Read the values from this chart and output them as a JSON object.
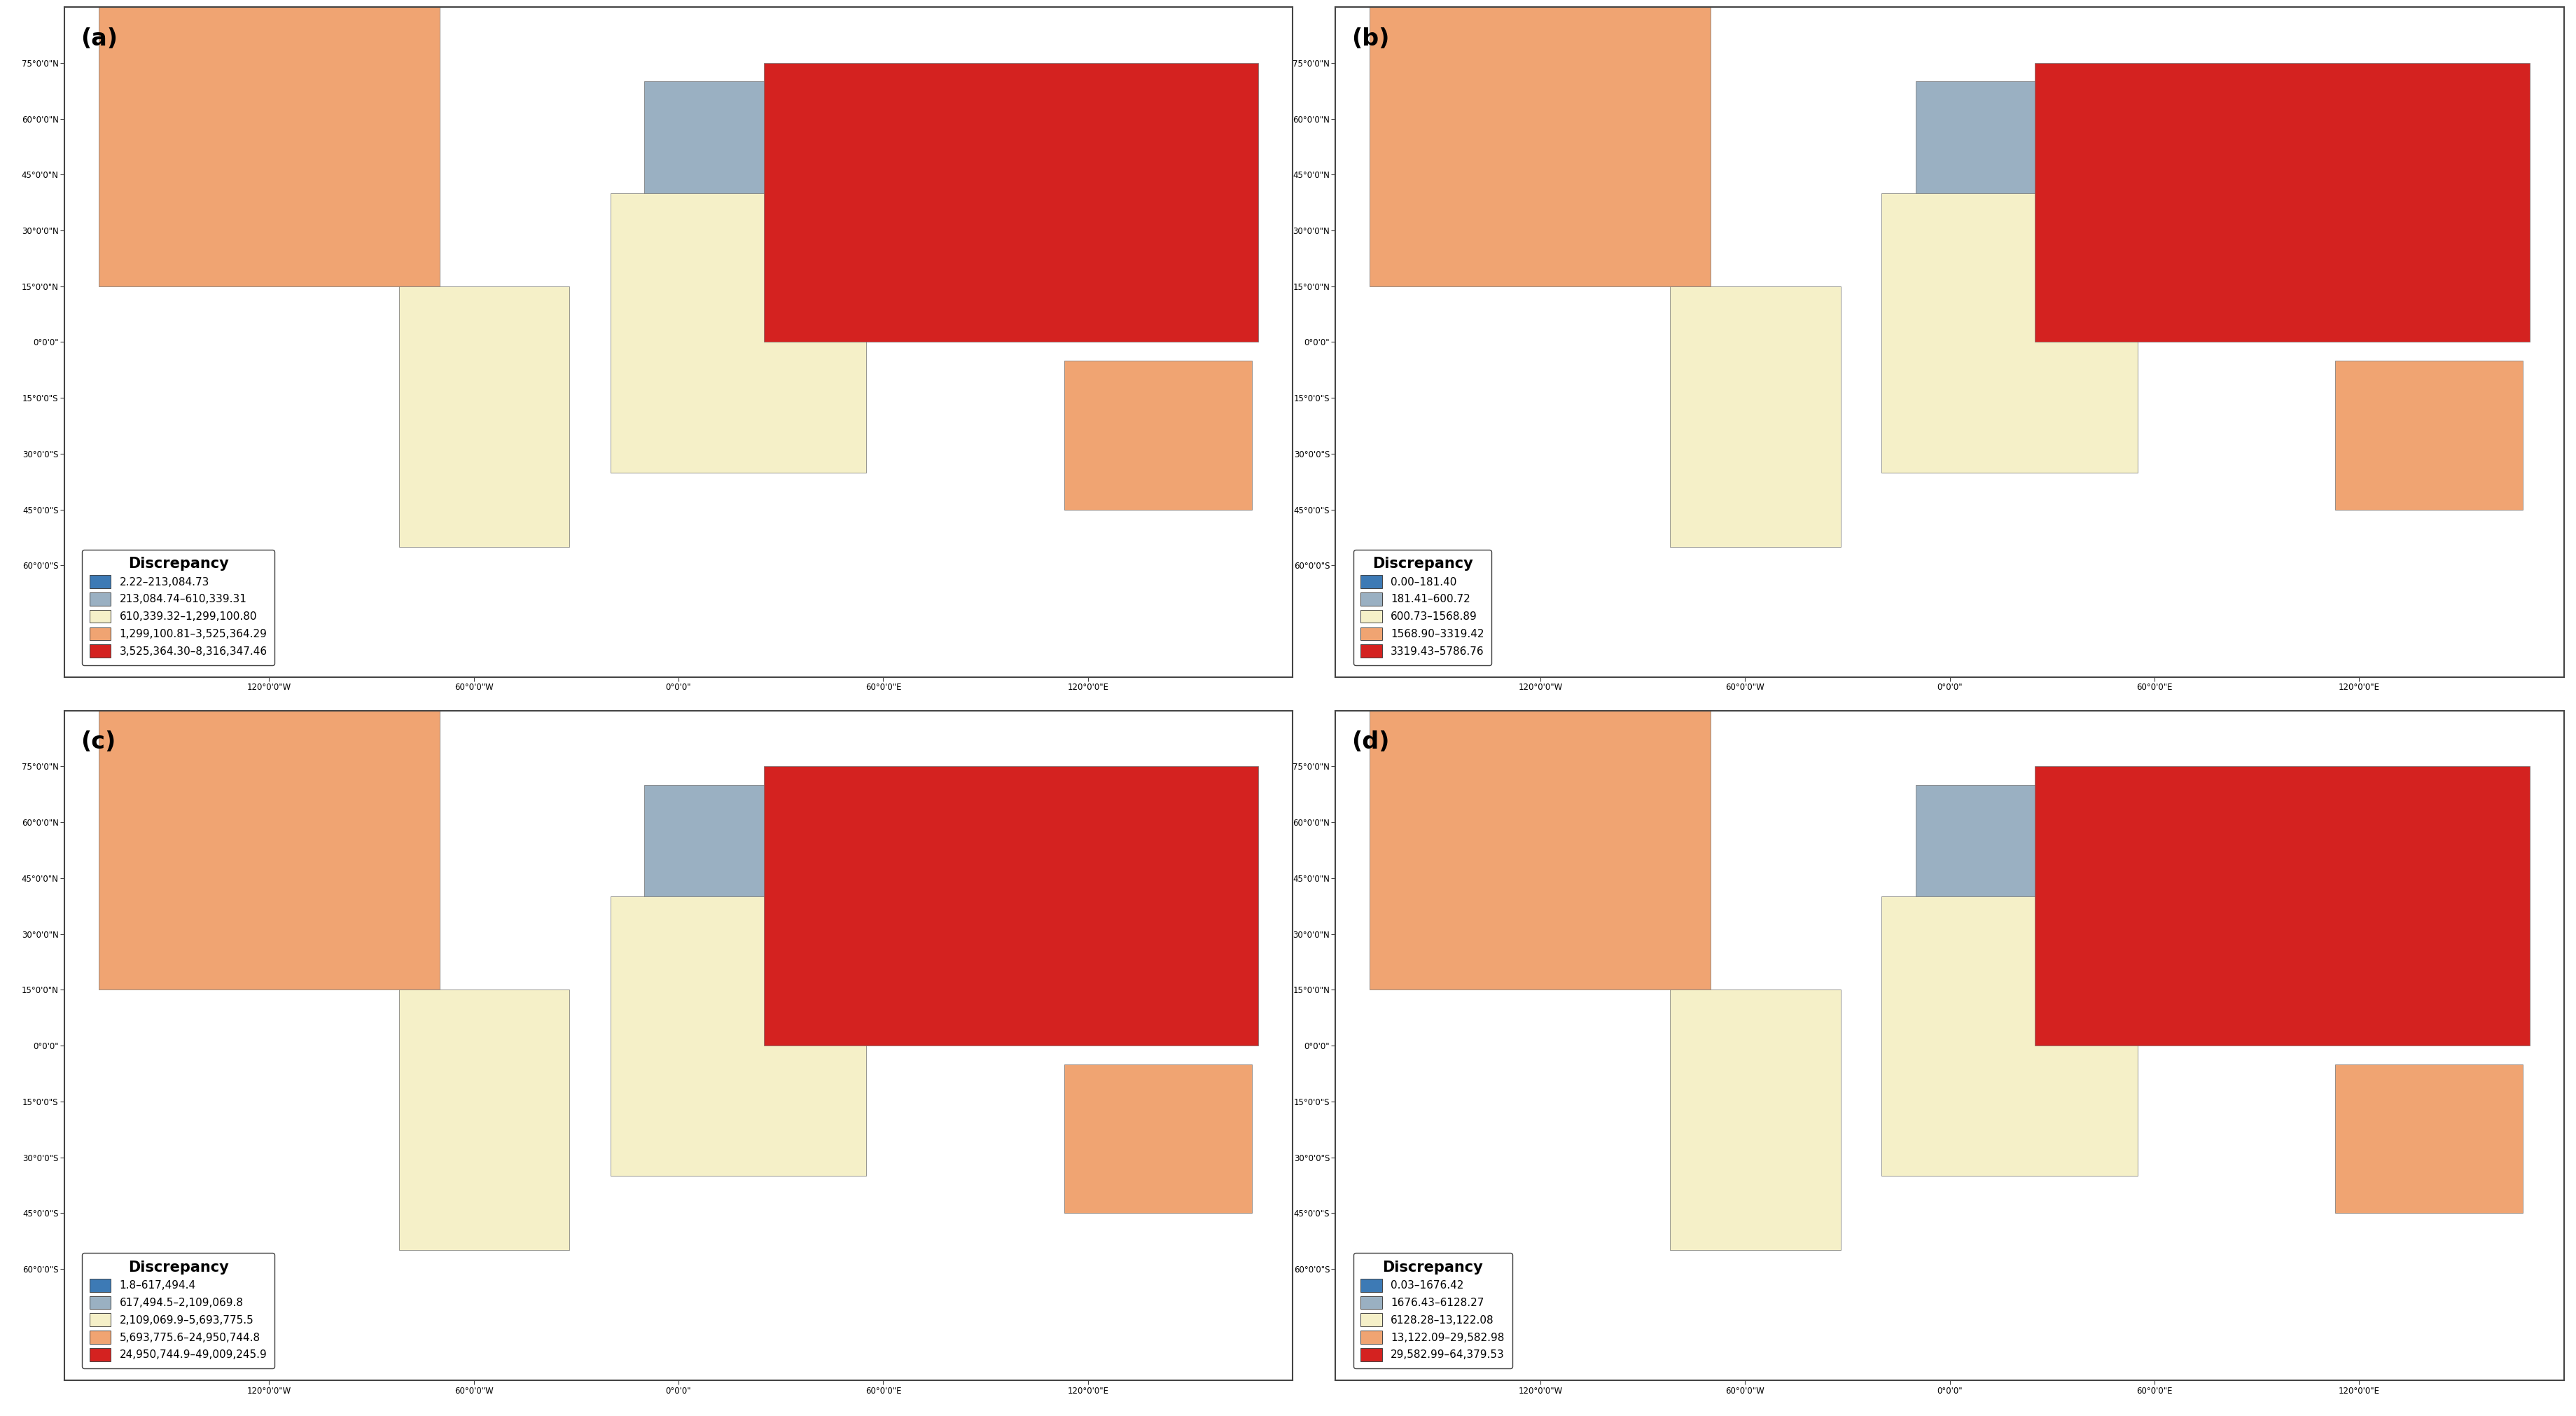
{
  "panels": [
    {
      "label": "(a)",
      "legend_title": "Discrepancy",
      "legend_items": [
        {
          "range": "2.22–213,084.73",
          "color": "#3d7ab5"
        },
        {
          "range": "213,084.74–610,339.31",
          "color": "#9ab0c2"
        },
        {
          "range": "610,339.32–1,299,100.80",
          "color": "#f5f0c8"
        },
        {
          "range": "1,299,100.81–3,525,364.29",
          "color": "#f0a472"
        },
        {
          "range": "3,525,364.30–8,316,347.46",
          "color": "#d42220"
        }
      ],
      "country_colors": {
        "Russia": 4,
        "Canada": 4,
        "Greenland": 2,
        "United States of America": 3,
        "Brazil": 3,
        "China": 4,
        "Australia": 3,
        "India": 3,
        "Argentina": 1,
        "Kazakhstan": 2,
        "Algeria": 1,
        "Saudi Arabia": 2,
        "Mexico": 2,
        "Indonesia": 1,
        "Sudan": 3,
        "Libya": 2,
        "Iran": 2,
        "Mongolia": 2,
        "Peru": 2,
        "Chad": 2,
        "Niger": 2,
        "Angola": 1,
        "Mali": 2,
        "South Africa": 1,
        "Colombia": 2,
        "Ethiopia": 1,
        "Bolivia": 2,
        "Mauritania": 2,
        "Egypt": 2,
        "Tanzania": 1,
        "Nigeria": 3,
        "Venezuela": 2,
        "Pakistan": 2,
        "Mozambique": 1,
        "Turkey": 2,
        "Zambia": 1,
        "Myanmar": 0,
        "Afghanistan": 1,
        "Somalia": 1,
        "Central African Republic": 1,
        "South Sudan": 1,
        "Ukraine": 2,
        "Madagascar": 1,
        "Botswana": 1,
        "Kenya": 0,
        "France": 0,
        "Germany": 0,
        "Sweden": 0,
        "Norway": 0,
        "Finland": 0,
        "Poland": 0,
        "United Kingdom": 0,
        "Japan": 0,
        "New Zealand": 0,
        "Dem. Rep. Congo": 1,
        "Congo": 1,
        "Cameroon": 1,
        "Zimbabwe": 1,
        "Namibia": 1,
        "Gabon": 1,
        "Ecuador": 0,
        "Paraguay": 1,
        "Uruguay": 1,
        "Chile": 1,
        "Iraq": 2,
        "Syria": 1,
        "Uzbekistan": 1,
        "Turkmenistan": 2,
        "Philippines": 0,
        "Vietnam": 0,
        "Thailand": 1,
        "Malaysia": 1,
        "Papua New Guinea": 1,
        "Morocco": 1,
        "Tunisia": 1,
        "Spain": 0,
        "Italy": 0,
        "Romania": 1,
        "Laos": 1,
        "Cambodia": 0,
        "Bangladesh": 0,
        "Nepal": 0
      }
    },
    {
      "label": "(b)",
      "legend_title": "Discrepancy",
      "legend_items": [
        {
          "range": "0.00–181.40",
          "color": "#3d7ab5"
        },
        {
          "range": "181.41–600.72",
          "color": "#9ab0c2"
        },
        {
          "range": "600.73–1568.89",
          "color": "#f5f0c8"
        },
        {
          "range": "1568.90–3319.42",
          "color": "#f0a472"
        },
        {
          "range": "3319.43–5786.76",
          "color": "#d42220"
        }
      ],
      "country_colors": {
        "Russia": 3,
        "Canada": 1,
        "Greenland": 1,
        "United States of America": 3,
        "Brazil": 2,
        "China": 4,
        "Australia": 2,
        "India": 3,
        "Argentina": 2,
        "Kazakhstan": 3,
        "Algeria": 1,
        "Saudi Arabia": 2,
        "Mexico": 2,
        "Indonesia": 1,
        "Sudan": 0,
        "Libya": 1,
        "Iran": 1,
        "Mongolia": 2,
        "Peru": 0,
        "Chad": 0,
        "Niger": 0,
        "Angola": 0,
        "Mali": 1,
        "South Africa": 0,
        "Colombia": 0,
        "Ethiopia": 0,
        "Bolivia": 0,
        "Mauritania": 0,
        "Egypt": 1,
        "Tanzania": 0,
        "Nigeria": 0,
        "Venezuela": 0,
        "Pakistan": 1,
        "Mozambique": 0,
        "Turkey": 1,
        "Zambia": 0,
        "Myanmar": 1,
        "Afghanistan": 0,
        "Somalia": 0,
        "France": 1,
        "Germany": 1,
        "Ukraine": 1,
        "Japan": 0,
        "New Zealand": 0,
        "Dem. Rep. Congo": 0,
        "Central African Republic": 0,
        "South Sudan": 0,
        "Zimbabwe": 0,
        "Madagascar": 0,
        "Morocco": 1,
        "Tunisia": 1,
        "Spain": 1,
        "Italy": 1,
        "Romania": 1,
        "Poland": 1,
        "Sweden": 1,
        "Norway": 1,
        "Finland": 1,
        "Laos": 1,
        "Cambodia": 1,
        "Bangladesh": 1,
        "Nepal": 1,
        "Congo": 0,
        "Cameroon": 0,
        "Namibia": 0,
        "Gabon": 0,
        "Paraguay": 0,
        "Uruguay": 0,
        "Chile": 0,
        "Uzbekistan": 1,
        "Turkmenistan": 2,
        "Philippines": 0,
        "Vietnam": 1,
        "Thailand": 1,
        "Malaysia": 0,
        "Papua New Guinea": 0
      }
    },
    {
      "label": "(c)",
      "legend_title": "Discrepancy",
      "legend_items": [
        {
          "range": "1.8–617,494.4",
          "color": "#3d7ab5"
        },
        {
          "range": "617,494.5–2,109,069.8",
          "color": "#9ab0c2"
        },
        {
          "range": "2,109,069.9–5,693,775.5",
          "color": "#f5f0c8"
        },
        {
          "range": "5,693,775.6–24,950,744.8",
          "color": "#f0a472"
        },
        {
          "range": "24,950,744.9–49,009,245.9",
          "color": "#d42220"
        }
      ],
      "country_colors": {
        "Russia": 4,
        "Canada": 3,
        "Greenland": 3,
        "United States of America": 3,
        "Brazil": 2,
        "China": 3,
        "Australia": 2,
        "India": 0,
        "Argentina": 1,
        "Kazakhstan": 2,
        "Algeria": 0,
        "Saudi Arabia": 2,
        "Mexico": 3,
        "Indonesia": 0,
        "Sudan": 0,
        "Libya": 0,
        "Iran": 1,
        "Mongolia": 1,
        "Peru": 0,
        "Chad": 0,
        "Niger": 0,
        "Angola": 0,
        "Mali": 0,
        "South Africa": 1,
        "Colombia": 0,
        "Ethiopia": 0,
        "Bolivia": 0,
        "Mauritania": 1,
        "Egypt": 0,
        "Tanzania": 0,
        "Nigeria": 0,
        "Venezuela": 0,
        "Pakistan": 0,
        "Mozambique": 0,
        "Turkey": 1,
        "Zambia": 0,
        "Myanmar": 0,
        "Afghanistan": 0,
        "Somalia": 0,
        "France": 0,
        "Germany": 0,
        "Ukraine": 1,
        "Japan": 0,
        "New Zealand": 0,
        "Dem. Rep. Congo": 1,
        "Central African Republic": 0,
        "South Sudan": 0,
        "Madagascar": 0,
        "Morocco": 0,
        "Tunisia": 0,
        "Spain": 0,
        "Italy": 0,
        "Romania": 1,
        "Poland": 0,
        "Sweden": 0,
        "Norway": 0,
        "Finland": 0,
        "Laos": 0,
        "Cambodia": 0,
        "Bangladesh": 0,
        "Nepal": 0,
        "Congo": 1,
        "Cameroon": 0,
        "Namibia": 0,
        "Gabon": 0,
        "Paraguay": 0,
        "Uruguay": 0,
        "Chile": 0,
        "Uzbekistan": 0,
        "Turkmenistan": 0,
        "Philippines": 0,
        "Vietnam": 0,
        "Thailand": 0,
        "Malaysia": 0,
        "Papua New Guinea": 0
      }
    },
    {
      "label": "(d)",
      "legend_title": "Discrepancy",
      "legend_items": [
        {
          "range": "0.03–1676.42",
          "color": "#3d7ab5"
        },
        {
          "range": "1676.43–6128.27",
          "color": "#9ab0c2"
        },
        {
          "range": "6128.28–13,122.08",
          "color": "#f5f0c8"
        },
        {
          "range": "13,122.09–29,582.98",
          "color": "#f0a472"
        },
        {
          "range": "29,582.99–64,379.53",
          "color": "#d42220"
        }
      ],
      "country_colors": {
        "Russia": 4,
        "Canada": 3,
        "Greenland": 1,
        "United States of America": 3,
        "Brazil": 3,
        "China": 3,
        "Australia": 2,
        "India": 3,
        "Argentina": 1,
        "Kazakhstan": 2,
        "Algeria": 1,
        "Saudi Arabia": 2,
        "Mexico": 2,
        "Indonesia": 1,
        "Sudan": 0,
        "Libya": 2,
        "Iran": 2,
        "Mongolia": 2,
        "Peru": 0,
        "Chad": 0,
        "Niger": 0,
        "Angola": 0,
        "Mali": 0,
        "South Africa": 1,
        "Colombia": 0,
        "Ethiopia": 0,
        "Bolivia": 0,
        "Mauritania": 0,
        "Egypt": 2,
        "Tanzania": 0,
        "Nigeria": 0,
        "Venezuela": 0,
        "Pakistan": 1,
        "Mozambique": 0,
        "Turkey": 2,
        "Zambia": 0,
        "Myanmar": 0,
        "Afghanistan": 1,
        "Somalia": 0,
        "France": 0,
        "Germany": 0,
        "Ukraine": 1,
        "Japan": 0,
        "New Zealand": 0,
        "Dem. Rep. Congo": 1,
        "Central African Republic": 0,
        "South Sudan": 0,
        "Madagascar": 0,
        "Morocco": 1,
        "Tunisia": 1,
        "Spain": 1,
        "Italy": 1,
        "Romania": 1,
        "Poland": 0,
        "Sweden": 0,
        "Norway": 0,
        "Finland": 0,
        "Laos": 0,
        "Cambodia": 0,
        "Bangladesh": 0,
        "Nepal": 0,
        "Congo": 1,
        "Cameroon": 0,
        "Namibia": 1,
        "Gabon": 0,
        "Paraguay": 0,
        "Uruguay": 0,
        "Chile": 1,
        "Uzbekistan": 1,
        "Turkmenistan": 2,
        "Philippines": 0,
        "Vietnam": 0,
        "Thailand": 1,
        "Malaysia": 1,
        "Papua New Guinea": 0
      }
    }
  ],
  "background_color": "#ffffff",
  "ocean_color": "#ffffff",
  "land_default_color": "#c8c8c8",
  "border_color": "#707070",
  "figure_bg": "#ffffff",
  "xtick_labels": [
    "120°0'0\"W",
    "60°0'0\"W",
    "0°0'0\"",
    "60°0'0\"E",
    "120°0'0\"E"
  ],
  "ytick_labels": [
    "75°0'0\"N",
    "60°0'0\"N",
    "45°0'0\"N",
    "30°0'0\"N",
    "15°0'0\"N",
    "0°0'0\"",
    "15°0'0\"S",
    "30°0'0\"S",
    "45°0'0\"S",
    "60°0'0\"S"
  ],
  "xtick_vals": [
    -120,
    -60,
    0,
    60,
    120
  ],
  "ytick_vals": [
    75,
    60,
    45,
    30,
    15,
    0,
    -15,
    -30,
    -45,
    -60
  ]
}
